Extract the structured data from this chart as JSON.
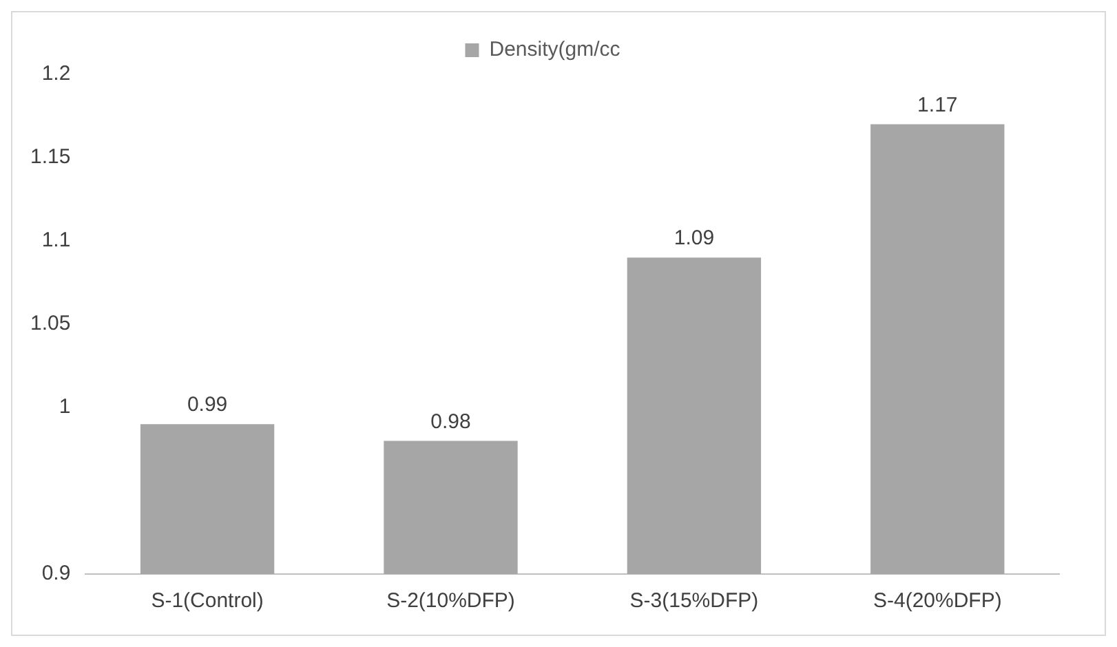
{
  "chart_data": {
    "type": "bar",
    "categories": [
      "S-1(Control)",
      "S-2(10%DFP)",
      "S-3(15%DFP)",
      "S-4(20%DFP)"
    ],
    "series": [
      {
        "name": "Density(gm/cc",
        "color": "#a6a6a6",
        "values": [
          0.99,
          0.98,
          1.09,
          1.17
        ]
      }
    ],
    "ylim": [
      0.9,
      1.2
    ],
    "yticks": [
      0.9,
      1,
      1.05,
      1.1,
      1.15,
      1.2
    ],
    "data_labels": true,
    "grid": false,
    "legend": "top"
  }
}
